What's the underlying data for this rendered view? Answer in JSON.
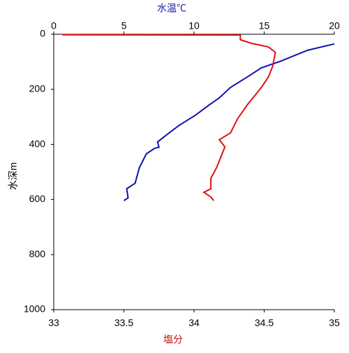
{
  "chart_data": {
    "type": "line",
    "x2label": "水温℃",
    "x2label_color": "#1f1fa8",
    "xlabel": "塩分",
    "xlabel_color": "#d01010",
    "ylabel": "水深m",
    "xlim": [
      33,
      35
    ],
    "xticks": [
      33,
      33.5,
      34,
      34.5,
      35
    ],
    "x2lim": [
      0,
      20
    ],
    "x2ticks": [
      0,
      5,
      10,
      15,
      20
    ],
    "ylim": [
      0,
      1000
    ],
    "yticks": [
      0,
      200,
      400,
      600,
      800,
      1000
    ],
    "y_inverted": true,
    "grid": false,
    "series": [
      {
        "color": "#1010b0",
        "axis": "x2",
        "x": [
          20,
          18.1,
          16.1,
          14.8,
          13.8,
          12.6,
          11.8,
          11.1,
          10.1,
          8.9,
          7.9,
          7.4,
          7.5,
          7.2,
          6.6,
          6.1,
          5.8,
          5.2,
          5.3,
          5.0
        ],
        "values": [
          35,
          58,
          99,
          122,
          155,
          193,
          231,
          256,
          294,
          332,
          371,
          391,
          410,
          414,
          434,
          485,
          541,
          561,
          594,
          604
        ]
      },
      {
        "color": "#e01010",
        "axis": "x",
        "x": [
          33.06,
          34.33,
          34.33,
          34.41,
          34.53,
          34.58,
          34.56,
          34.53,
          34.48,
          34.38,
          34.31,
          34.26,
          34.18,
          34.22,
          34.16,
          34.12,
          34.12,
          34.07,
          34.12,
          34.14
        ],
        "values": [
          2,
          3,
          20,
          33,
          46,
          66,
          117,
          155,
          193,
          256,
          307,
          358,
          383,
          409,
          485,
          523,
          561,
          574,
          591,
          604
        ]
      }
    ]
  }
}
